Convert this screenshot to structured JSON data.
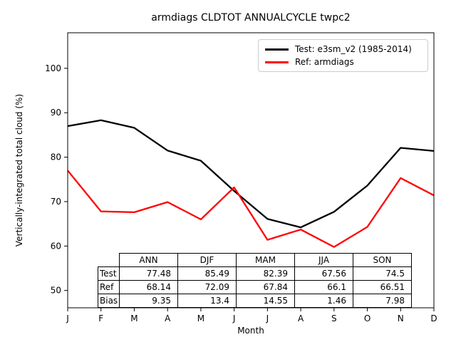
{
  "title": "armdiags CLDTOT ANNUALCYCLE twpc2",
  "chart_data": {
    "type": "line",
    "title": "armdiags CLDTOT ANNUALCYCLE twpc2",
    "xlabel": "Month",
    "ylabel": "Vertically-integrated total cloud (%)",
    "categories": [
      "J",
      "F",
      "M",
      "A",
      "M",
      "J",
      "J",
      "A",
      "S",
      "O",
      "N",
      "D"
    ],
    "yticks": [
      50,
      60,
      70,
      80,
      90,
      100
    ],
    "ylim": [
      46.1,
      108.0
    ],
    "grid": false,
    "legend_position": "upper right",
    "series": [
      {
        "name": "Test: e3sm_v2 (1985-2014)",
        "color": "#000000",
        "values": [
          87.0,
          88.3,
          86.6,
          81.5,
          79.2,
          72.4,
          66.1,
          64.2,
          67.7,
          73.6,
          82.1,
          81.4
        ]
      },
      {
        "name": "Ref: armdiags",
        "color": "#ff0000",
        "values": [
          77.0,
          67.8,
          67.6,
          69.9,
          66.0,
          73.2,
          61.4,
          63.7,
          59.8,
          64.3,
          75.3,
          71.4
        ]
      }
    ],
    "table": {
      "columns": [
        "ANN",
        "DJF",
        "MAM",
        "JJA",
        "SON"
      ],
      "rows": [
        {
          "label": "Test",
          "values": [
            "77.48",
            "85.49",
            "82.39",
            "67.56",
            "74.5"
          ]
        },
        {
          "label": "Ref",
          "values": [
            "68.14",
            "72.09",
            "67.84",
            "66.1",
            "66.51"
          ]
        },
        {
          "label": "Bias",
          "values": [
            "9.35",
            "13.4",
            "14.55",
            "1.46",
            "7.98"
          ]
        }
      ]
    }
  }
}
